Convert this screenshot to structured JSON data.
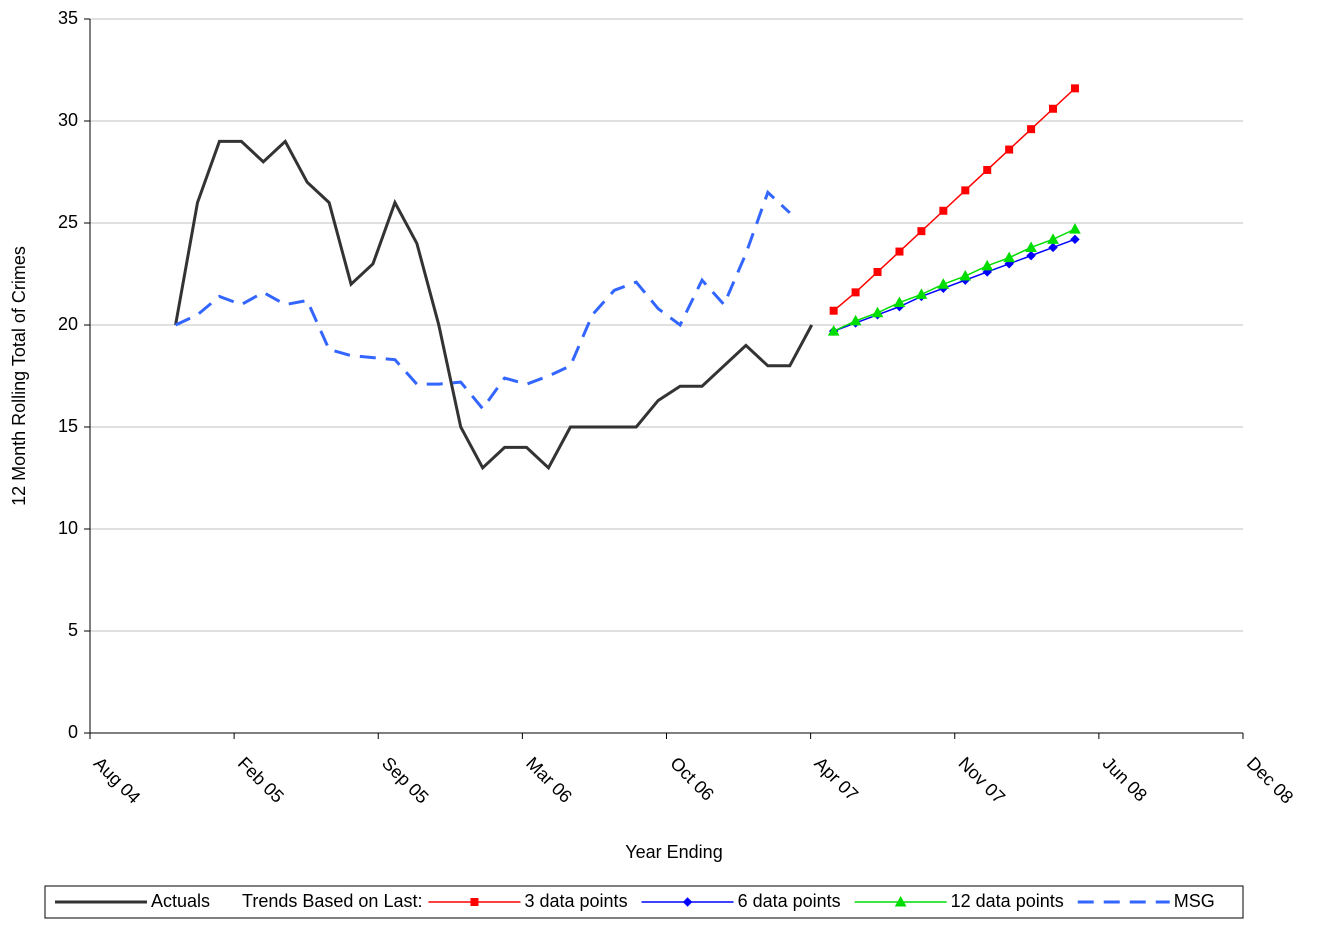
{
  "chart_data": {
    "type": "line",
    "x_label": "Year Ending",
    "y_label": "12 Month Rolling Total of Crimes",
    "xlim": [
      0,
      52.56
    ],
    "xticks": [
      {
        "value": 0,
        "label": "Aug 04"
      },
      {
        "value": 6.57,
        "label": "Feb 05"
      },
      {
        "value": 13.14,
        "label": "Sep 05"
      },
      {
        "value": 19.71,
        "label": "Mar 06"
      },
      {
        "value": 26.28,
        "label": "Oct 06"
      },
      {
        "value": 32.85,
        "label": "Apr 07"
      },
      {
        "value": 39.42,
        "label": "Nov 07"
      },
      {
        "value": 45.99,
        "label": "Jun 08"
      },
      {
        "value": 52.56,
        "label": "Dec 08"
      }
    ],
    "ylim": [
      0,
      35
    ],
    "yticks": [
      0,
      5,
      10,
      15,
      20,
      25,
      30,
      35
    ],
    "grid": true,
    "legend_position": "bottom",
    "legend_note": "Trends Based on Last:",
    "series": [
      {
        "name": "Actuals",
        "color": "#333333",
        "width": 3,
        "marker": "none",
        "x": [
          3.9,
          4.9,
          5.9,
          6.9,
          7.9,
          8.9,
          9.9,
          10.9,
          11.9,
          12.9,
          13.9,
          14.9,
          15.9,
          16.9,
          17.9,
          18.9,
          19.9,
          20.9,
          21.9,
          22.9,
          23.9,
          24.9,
          25.9,
          26.9,
          27.9,
          28.9,
          29.9,
          30.9,
          31.9,
          32.9
        ],
        "values": [
          20,
          26,
          29,
          29,
          28,
          29,
          27,
          26,
          22,
          23,
          26,
          24,
          20,
          15,
          13,
          14,
          14,
          13,
          15,
          15,
          15,
          15,
          16.3,
          17,
          17,
          18,
          19,
          18,
          18,
          20
        ]
      },
      {
        "name": "3 data points",
        "color": "#ff0000",
        "width": 1.5,
        "marker": "square",
        "x": [
          33.9,
          34.9,
          35.9,
          36.9,
          37.9,
          38.9,
          39.9,
          40.9,
          41.9,
          42.9,
          43.9,
          44.9
        ],
        "values": [
          20.7,
          21.6,
          22.6,
          23.6,
          24.6,
          25.6,
          26.6,
          27.6,
          28.6,
          29.6,
          30.6,
          31.6
        ]
      },
      {
        "name": "6 data points",
        "color": "#0000ff",
        "width": 1.5,
        "marker": "diamond",
        "x": [
          33.9,
          34.9,
          35.9,
          36.9,
          37.9,
          38.9,
          39.9,
          40.9,
          41.9,
          42.9,
          43.9,
          44.9
        ],
        "values": [
          19.7,
          20.1,
          20.5,
          20.9,
          21.4,
          21.8,
          22.2,
          22.6,
          23.0,
          23.4,
          23.8,
          24.2
        ]
      },
      {
        "name": "12 data points",
        "color": "#00dd00",
        "width": 1.5,
        "marker": "triangle",
        "x": [
          33.9,
          34.9,
          35.9,
          36.9,
          37.9,
          38.9,
          39.9,
          40.9,
          41.9,
          42.9,
          43.9,
          44.9
        ],
        "values": [
          19.7,
          20.2,
          20.6,
          21.1,
          21.5,
          22.0,
          22.4,
          22.9,
          23.3,
          23.8,
          24.2,
          24.7
        ]
      },
      {
        "name": "MSG",
        "color": "#3366ff",
        "width": 3,
        "marker": "none",
        "dash": "16 10",
        "x": [
          3.9,
          4.9,
          5.9,
          6.9,
          7.9,
          8.9,
          9.9,
          10.9,
          11.9,
          12.9,
          13.9,
          14.9,
          15.9,
          16.9,
          17.9,
          18.9,
          19.9,
          20.9,
          21.9,
          22.9,
          23.9,
          24.9,
          25.9,
          26.9,
          27.9,
          28.9,
          29.9,
          30.9,
          31.9
        ],
        "values": [
          20,
          20.5,
          21.4,
          21,
          21.6,
          21,
          21.2,
          18.8,
          18.5,
          18.4,
          18.3,
          17.1,
          17.1,
          17.2,
          15.9,
          17.4,
          17.1,
          17.5,
          18,
          20.5,
          21.7,
          22.1,
          20.8,
          20,
          22.2,
          21,
          23.5,
          26.5,
          25.5
        ]
      }
    ]
  }
}
